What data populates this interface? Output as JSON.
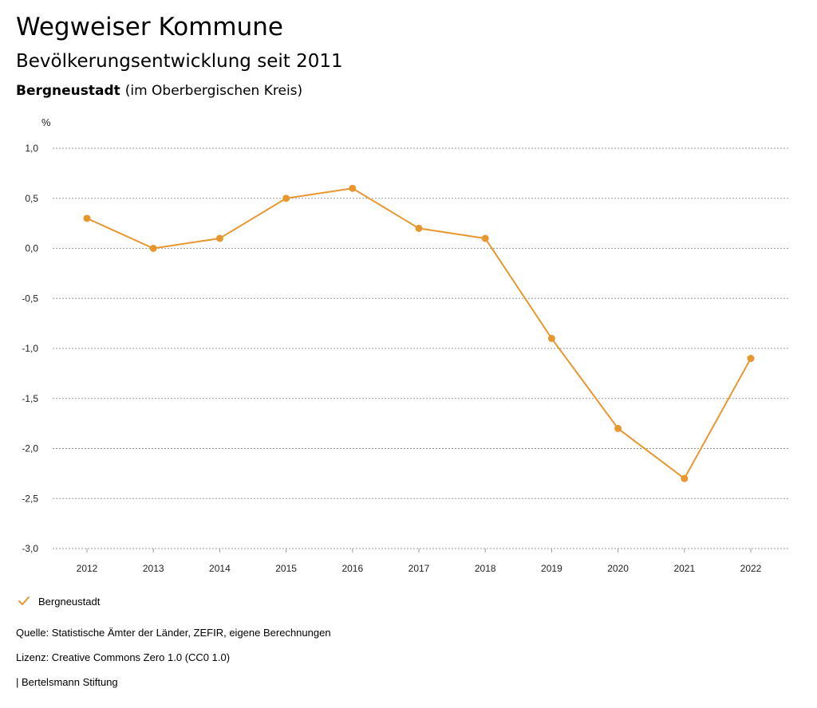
{
  "header": {
    "title": "Wegweiser Kommune",
    "subtitle": "Bevölkerungsentwicklung seit 2011",
    "region_name": "Bergneustadt",
    "region_detail": "(im Oberbergischen Kreis)"
  },
  "chart_data": {
    "type": "line",
    "ylabel": "%",
    "xlabel": "",
    "ylim": [
      -3.0,
      1.0
    ],
    "ytick_step": 0.5,
    "grid": true,
    "grid_style": "dotted",
    "legend_position": "bottom-left",
    "x": [
      "2012",
      "2013",
      "2014",
      "2015",
      "2016",
      "2017",
      "2018",
      "2019",
      "2020",
      "2021",
      "2022"
    ],
    "series": [
      {
        "name": "Bergneustadt",
        "color": "#e8962e",
        "values": [
          0.3,
          0.0,
          0.1,
          0.5,
          0.6,
          0.2,
          0.1,
          -0.9,
          -1.8,
          -2.3,
          -1.1
        ]
      }
    ]
  },
  "legend": {
    "label": "Bergneustadt",
    "icon": "checkmark-icon"
  },
  "footer": {
    "source": "Quelle: Statistische Ämter der Länder, ZEFIR, eigene Berechnungen",
    "license": "Lizenz: Creative Commons Zero 1.0 (CC0 1.0)",
    "publisher": "| Bertelsmann Stiftung"
  }
}
